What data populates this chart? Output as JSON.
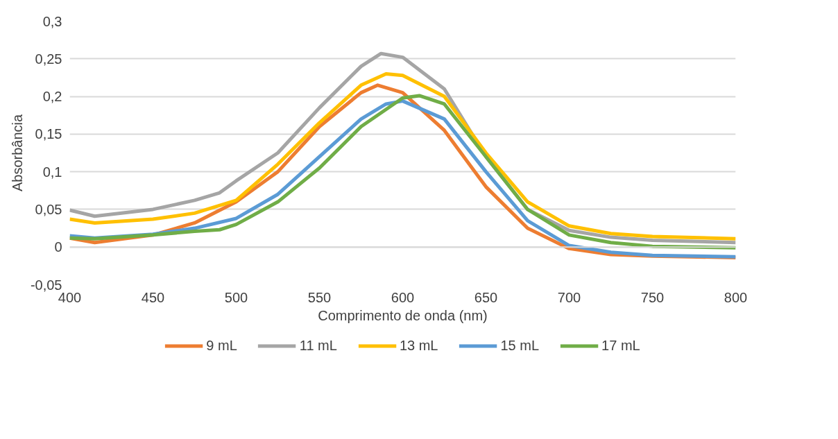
{
  "chart_data": {
    "type": "line",
    "xlabel": "Comprimento de onda (nm)",
    "ylabel": "Absorbância",
    "xlim": [
      400,
      800
    ],
    "xticks": [
      400,
      450,
      500,
      550,
      600,
      650,
      700,
      750,
      800
    ],
    "ylim": [
      -0.05,
      0.3
    ],
    "yticks": [
      {
        "value": -0.05,
        "label": "-0,05"
      },
      0,
      {
        "value": 0.05,
        "label": "0,05"
      },
      {
        "value": 0.1,
        "label": "0,1"
      },
      {
        "value": 0.15,
        "label": "0,15"
      },
      {
        "value": 0.2,
        "label": "0,2"
      },
      {
        "value": 0.25,
        "label": "0,25"
      },
      {
        "value": 0.3,
        "label": "0,3"
      }
    ],
    "grid": "y",
    "legend": "bottom",
    "marker": "none",
    "line_style": "solid",
    "series": [
      {
        "name": "9 mL",
        "color": "#ed7d31",
        "x": [
          400,
          415,
          450,
          475,
          500,
          525,
          550,
          575,
          585,
          600,
          625,
          650,
          675,
          700,
          725,
          750,
          800
        ],
        "values": [
          0.012,
          0.006,
          0.016,
          0.032,
          0.06,
          0.1,
          0.16,
          0.205,
          0.215,
          0.205,
          0.155,
          0.08,
          0.025,
          -0.002,
          -0.01,
          -0.012,
          -0.014
        ]
      },
      {
        "name": "11 mL",
        "color": "#a5a5a5",
        "x": [
          400,
          415,
          450,
          475,
          490,
          500,
          525,
          550,
          575,
          587,
          600,
          625,
          650,
          675,
          700,
          725,
          750,
          800
        ],
        "values": [
          0.049,
          0.041,
          0.05,
          0.062,
          0.072,
          0.088,
          0.125,
          0.185,
          0.24,
          0.257,
          0.252,
          0.21,
          0.12,
          0.05,
          0.022,
          0.013,
          0.009,
          0.006
        ]
      },
      {
        "name": "13 mL",
        "color": "#ffc000",
        "x": [
          400,
          415,
          450,
          475,
          500,
          525,
          550,
          575,
          590,
          600,
          625,
          650,
          675,
          700,
          725,
          750,
          800
        ],
        "values": [
          0.037,
          0.032,
          0.037,
          0.045,
          0.062,
          0.11,
          0.165,
          0.215,
          0.23,
          0.228,
          0.2,
          0.125,
          0.06,
          0.028,
          0.018,
          0.014,
          0.011
        ]
      },
      {
        "name": "15 mL",
        "color": "#5b9bd5",
        "x": [
          400,
          415,
          450,
          475,
          500,
          525,
          550,
          575,
          590,
          600,
          625,
          650,
          675,
          700,
          725,
          750,
          800
        ],
        "values": [
          0.015,
          0.012,
          0.017,
          0.025,
          0.038,
          0.07,
          0.12,
          0.17,
          0.19,
          0.194,
          0.17,
          0.1,
          0.035,
          0.002,
          -0.007,
          -0.011,
          -0.013
        ]
      },
      {
        "name": "17 mL",
        "color": "#70ad47",
        "x": [
          400,
          415,
          450,
          475,
          490,
          500,
          525,
          550,
          575,
          600,
          610,
          625,
          650,
          675,
          700,
          725,
          750,
          800
        ],
        "values": [
          0.012,
          0.011,
          0.016,
          0.021,
          0.023,
          0.03,
          0.06,
          0.105,
          0.16,
          0.198,
          0.201,
          0.19,
          0.12,
          0.05,
          0.016,
          0.006,
          0.001,
          -0.001
        ]
      }
    ]
  }
}
